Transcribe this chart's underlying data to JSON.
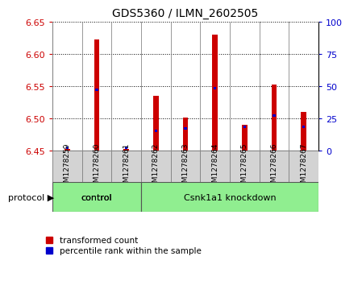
{
  "title": "GDS5360 / ILMN_2602505",
  "samples": [
    "GSM1278259",
    "GSM1278260",
    "GSM1278261",
    "GSM1278262",
    "GSM1278263",
    "GSM1278264",
    "GSM1278265",
    "GSM1278266",
    "GSM1278267"
  ],
  "transformed_count": [
    6.452,
    6.622,
    6.452,
    6.535,
    6.501,
    6.63,
    6.49,
    6.552,
    6.51
  ],
  "percentile_rank": [
    2,
    47,
    2,
    15,
    17,
    48,
    18,
    27,
    18
  ],
  "ylim": [
    6.45,
    6.65
  ],
  "yticks": [
    6.45,
    6.5,
    6.55,
    6.6,
    6.65
  ],
  "right_yticks": [
    0,
    25,
    50,
    75,
    100
  ],
  "bar_bottom": 6.45,
  "bar_width": 0.18,
  "red_color": "#cc0000",
  "blue_color": "#0000cc",
  "control_count": 3,
  "control_label": "control",
  "knockdown_label": "Csnk1a1 knockdown",
  "protocol_label": "protocol",
  "legend_red": "transformed count",
  "legend_blue": "percentile rank within the sample",
  "group_color": "#90EE90",
  "sample_box_color": "#d3d3d3",
  "plot_bg": "#ffffff"
}
